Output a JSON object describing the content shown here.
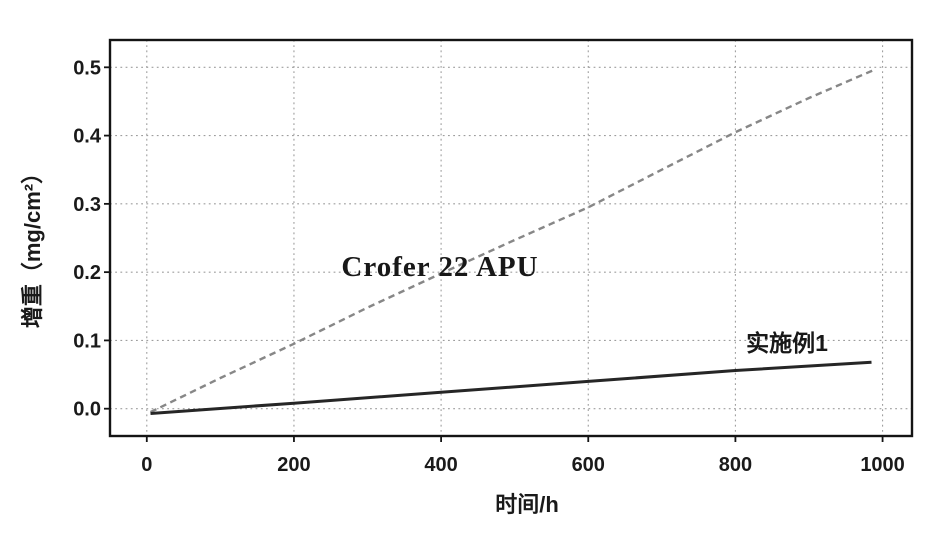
{
  "figure": {
    "background_color": "#ffffff",
    "frame_color": "#141414",
    "grid_color": "#9e9e9e",
    "text_color": "#1a1a1a"
  },
  "chart_data": {
    "type": "line",
    "title": "",
    "xlabel": "时间/h",
    "ylabel": "增重（mg/cm²）",
    "xlim": [
      -50,
      1040
    ],
    "ylim": [
      -0.04,
      0.54
    ],
    "x_ticks": [
      0,
      200,
      400,
      600,
      800,
      1000
    ],
    "y_ticks": [
      "0.0",
      "0.1",
      "0.2",
      "0.3",
      "0.4",
      "0.5"
    ],
    "grid": "dotted gray gridlines at every major tick, both axes",
    "legend_position": "none (labels drawn next to lines)",
    "series": [
      {
        "name": "Crofer 22 APU",
        "style": "dashed",
        "color": "#878787",
        "width": 2.4,
        "points": [
          [
            5,
            -0.005
          ],
          [
            100,
            0.045
          ],
          [
            200,
            0.095
          ],
          [
            300,
            0.148
          ],
          [
            400,
            0.198
          ],
          [
            500,
            0.247
          ],
          [
            600,
            0.295
          ],
          [
            700,
            0.35
          ],
          [
            800,
            0.405
          ],
          [
            900,
            0.455
          ],
          [
            990,
            0.497
          ]
        ]
      },
      {
        "name": "实施例1",
        "style": "solid",
        "color": "#262626",
        "width": 3,
        "points": [
          [
            5,
            -0.007
          ],
          [
            200,
            0.008
          ],
          [
            400,
            0.024
          ],
          [
            600,
            0.04
          ],
          [
            800,
            0.056
          ],
          [
            985,
            0.068
          ]
        ]
      }
    ],
    "annotations": [
      {
        "text": "Crofer 22 APU",
        "x": 398,
        "y": 0.209
      },
      {
        "text": "实施例1",
        "x": 870,
        "y": 0.096
      }
    ]
  }
}
